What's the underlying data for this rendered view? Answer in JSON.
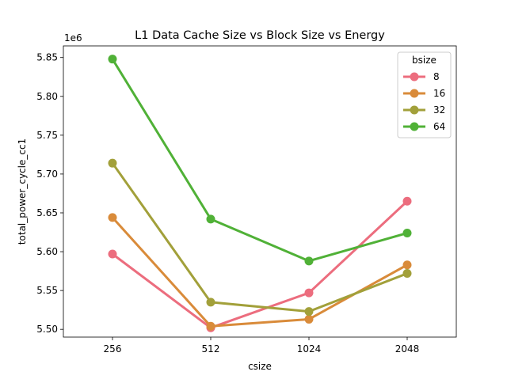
{
  "chart_data": {
    "type": "line",
    "title": "L1 Data Cache Size vs Block Size vs Energy",
    "xlabel": "csize",
    "ylabel": "total_power_cycle_cc1",
    "y_offset_label": "1e6",
    "categories": [
      "256",
      "512",
      "1024",
      "2048"
    ],
    "y_ticks": [
      "5.50",
      "5.55",
      "5.60",
      "5.65",
      "5.70",
      "5.75",
      "5.80",
      "5.85"
    ],
    "ylim": [
      5.49,
      5.865
    ],
    "grid": false,
    "legend": {
      "title": "bsize",
      "position": "top-right"
    },
    "series": [
      {
        "name": "8",
        "color": "#ec6d7e",
        "values": [
          5.597,
          5.502,
          5.547,
          5.665
        ]
      },
      {
        "name": "16",
        "color": "#d98b3a",
        "values": [
          5.644,
          5.504,
          5.513,
          5.583
        ]
      },
      {
        "name": "32",
        "color": "#a2a03a",
        "values": [
          5.714,
          5.535,
          5.523,
          5.572
        ]
      },
      {
        "name": "64",
        "color": "#50b137",
        "values": [
          5.848,
          5.642,
          5.588,
          5.624
        ]
      }
    ]
  }
}
